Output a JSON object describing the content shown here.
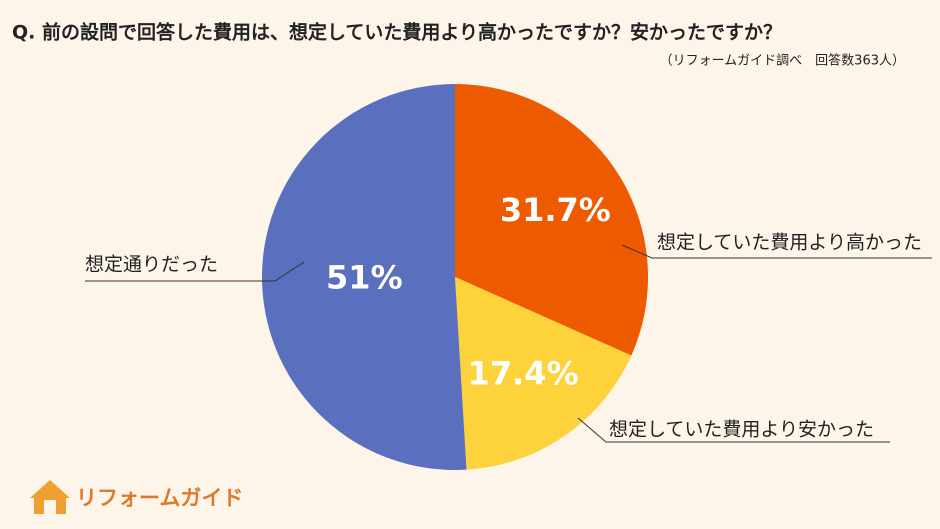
{
  "chart_data": {
    "type": "pie",
    "title": "Q. 前の設問で回答した費用は、想定していた費用より高かったですか？安かったですか？",
    "subtitle": "（リフォームガイド調べ　回答数363人）",
    "categories": [
      "想定していた費用より高かった",
      "想定していた費用より安かった",
      "想定通りだった"
    ],
    "values": [
      31.7,
      17.4,
      51
    ],
    "value_labels": [
      "31.7%",
      "17.4%",
      "51%"
    ],
    "colors": [
      "#ee5a00",
      "#fdd23a",
      "#5a70bf"
    ]
  },
  "brand": "リフォームガイド"
}
